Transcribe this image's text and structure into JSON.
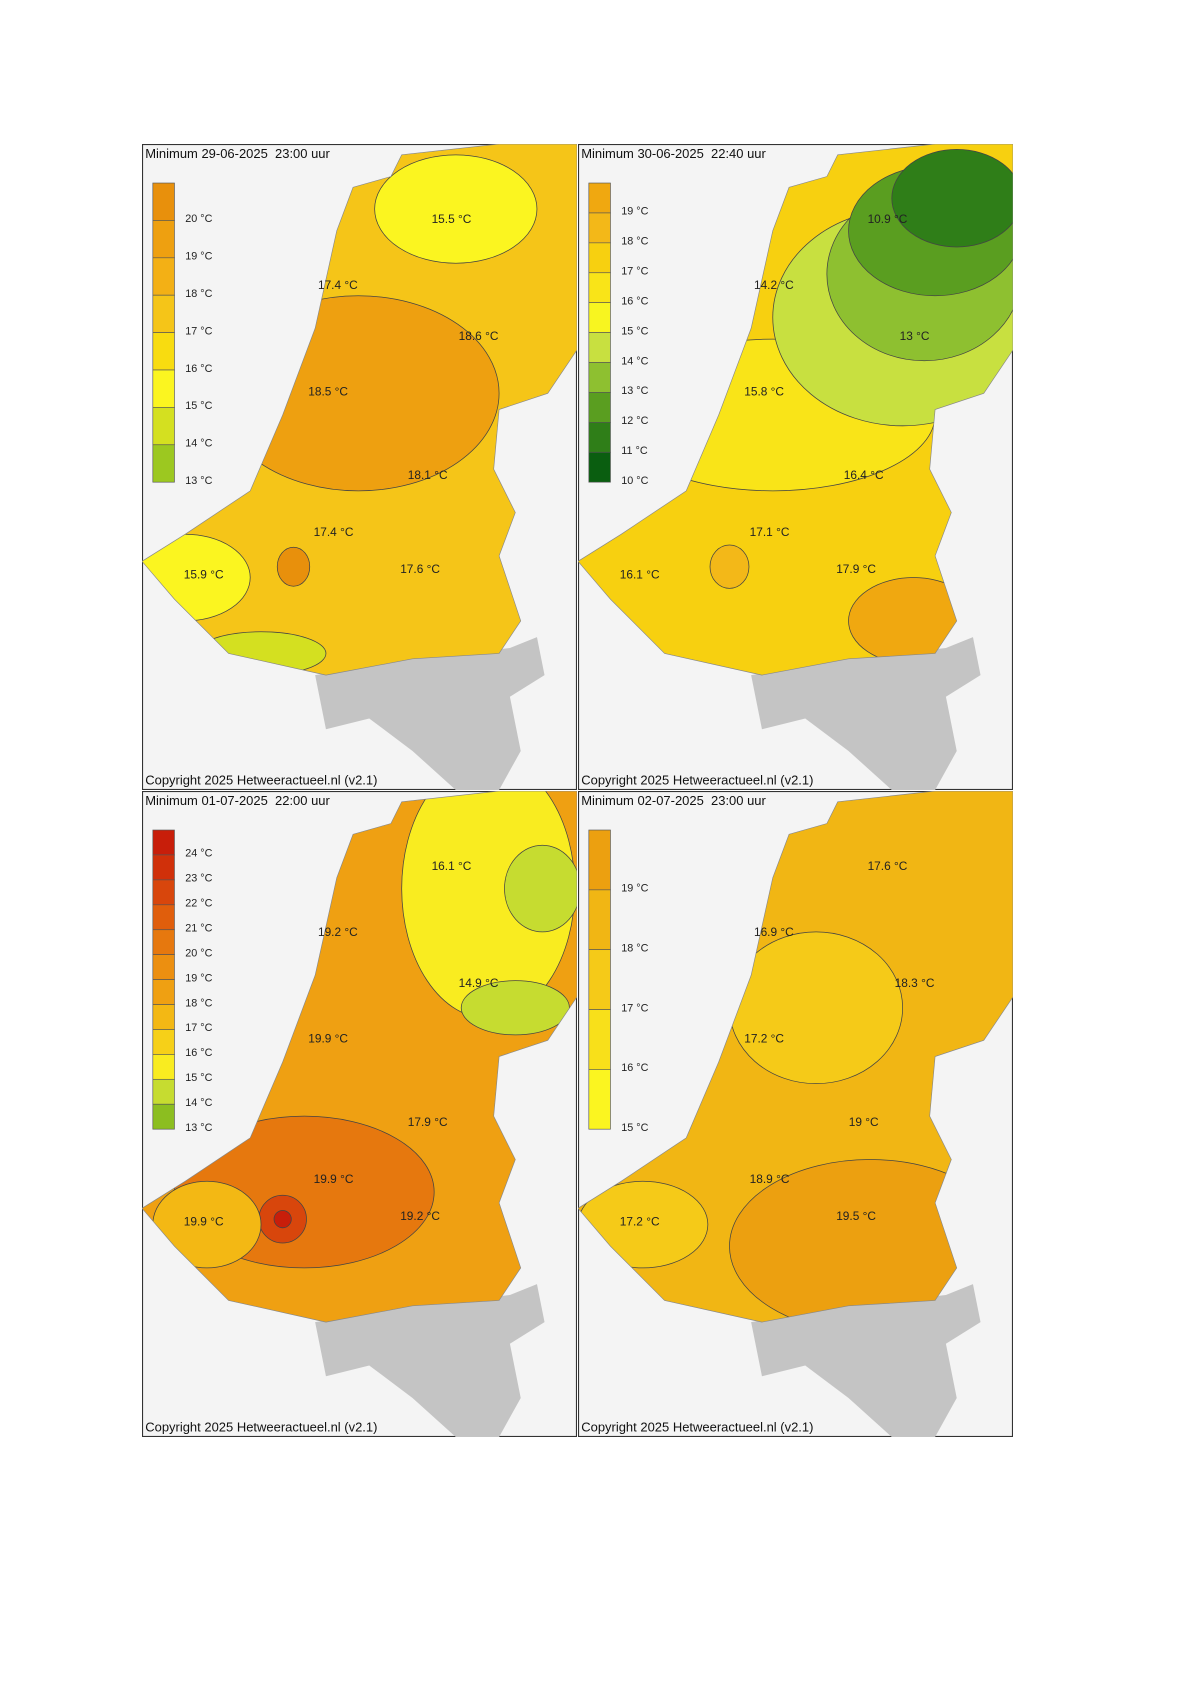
{
  "panels": [
    {
      "title": "Minimum 29-06-2025  23:00 uur",
      "legend": [
        {
          "label": "20 °C",
          "color": "#e8900c"
        },
        {
          "label": "19 °C",
          "color": "#eea010"
        },
        {
          "label": "18 °C",
          "color": "#f3b015"
        },
        {
          "label": "17 °C",
          "color": "#f5c518"
        },
        {
          "label": "16 °C",
          "color": "#f8dc10"
        },
        {
          "label": "15 °C",
          "color": "#fbf520"
        },
        {
          "label": "14 °C",
          "color": "#d4e020"
        },
        {
          "label": "13 °C",
          "color": "#9cc820"
        }
      ],
      "labels": [
        "15.5 °C",
        "17.4 °C",
        "18.6 °C",
        "18.5 °C",
        "18.1 °C",
        "17.4 °C",
        "15.9 °C",
        "17.6 °C"
      ],
      "copyright": "Copyright 2025 Hetweeractueel.nl (v2.1)"
    },
    {
      "title": "Minimum 30-06-2025  22:40 uur",
      "legend": [
        {
          "label": "19 °C",
          "color": "#f0a810"
        },
        {
          "label": "18 °C",
          "color": "#f3b818"
        },
        {
          "label": "17 °C",
          "color": "#f7d010"
        },
        {
          "label": "16 °C",
          "color": "#f9e418"
        },
        {
          "label": "15 °C",
          "color": "#f8f520"
        },
        {
          "label": "14 °C",
          "color": "#c8e040"
        },
        {
          "label": "13 °C",
          "color": "#8ec030"
        },
        {
          "label": "12 °C",
          "color": "#5a9e20"
        },
        {
          "label": "11 °C",
          "color": "#2f7e18"
        },
        {
          "label": "10 °C",
          "color": "#0a5e10"
        }
      ],
      "labels": [
        "10.9 °C",
        "14.2 °C",
        "13 °C",
        "15.8 °C",
        "16.4 °C",
        "17.1 °C",
        "16.1 °C",
        "17.9 °C"
      ],
      "copyright": "Copyright 2025 Hetweeractueel.nl (v2.1)"
    },
    {
      "title": "Minimum 01-07-2025  22:00 uur",
      "legend": [
        {
          "label": "24 °C",
          "color": "#c81e0a"
        },
        {
          "label": "23 °C",
          "color": "#d0300a"
        },
        {
          "label": "22 °C",
          "color": "#d8460c"
        },
        {
          "label": "21 °C",
          "color": "#e05e0c"
        },
        {
          "label": "20 °C",
          "color": "#e6780e"
        },
        {
          "label": "19 °C",
          "color": "#ec8f10"
        },
        {
          "label": "18 °C",
          "color": "#efa012"
        },
        {
          "label": "17 °C",
          "color": "#f3b814"
        },
        {
          "label": "16 °C",
          "color": "#f6d018"
        },
        {
          "label": "15 °C",
          "color": "#f9ec20"
        },
        {
          "label": "14 °C",
          "color": "#c6dc30"
        },
        {
          "label": "13 °C",
          "color": "#8cbe20"
        }
      ],
      "labels": [
        "16.1 °C",
        "19.2 °C",
        "14.9 °C",
        "19.9 °C",
        "17.9 °C",
        "19.9 °C",
        "19.9 °C",
        "19.2 °C"
      ],
      "copyright": "Copyright 2025 Hetweeractueel.nl (v2.1)"
    },
    {
      "title": "Minimum 02-07-2025  23:00 uur",
      "legend": [
        {
          "label": "19 °C",
          "color": "#eca010"
        },
        {
          "label": "18 °C",
          "color": "#f1b614"
        },
        {
          "label": "17 °C",
          "color": "#f5ca18"
        },
        {
          "label": "16 °C",
          "color": "#f8e01a"
        },
        {
          "label": "15 °C",
          "color": "#fbf520"
        }
      ],
      "labels": [
        "17.6 °C",
        "16.9 °C",
        "18.3 °C",
        "17.2 °C",
        "19 °C",
        "18.9 °C",
        "17.2 °C",
        "19.5 °C"
      ],
      "copyright": "Copyright 2025 Hetweeractueel.nl (v2.1)"
    }
  ]
}
